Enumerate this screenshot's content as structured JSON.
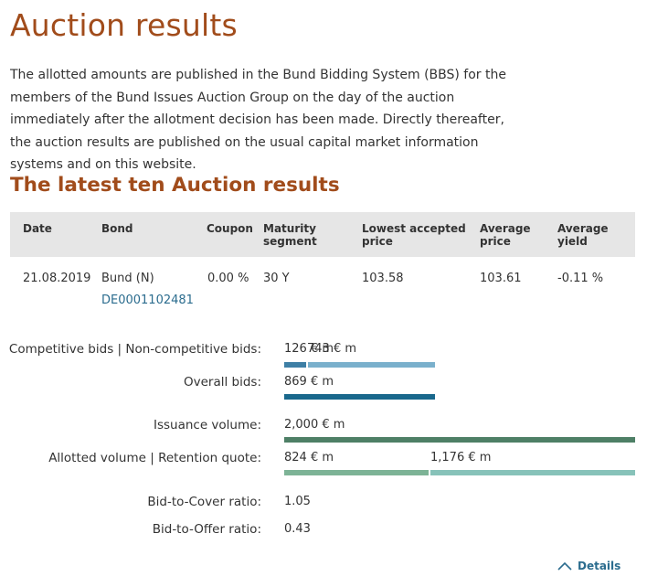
{
  "page": {
    "title": "Auction results",
    "intro": "The allotted amounts are published in the Bund Bidding System (BBS) for the members of the Bund Issues Auction Group on the day of the auction immediately after the allotment decision has been made. Directly thereafter, the auction results are published on the usual capital market information systems and on this website.",
    "section_title": "The latest ten Auction results"
  },
  "table": {
    "headers": {
      "date": "Date",
      "bond": "Bond",
      "coupon": "Coupon",
      "maturity_1": "Maturity",
      "maturity_2": "segment",
      "lowest_1": "Lowest accepted",
      "lowest_2": "price",
      "average_price_1": "Average",
      "average_price_2": "price",
      "average_yield_1": "Average",
      "average_yield_2": "yield"
    },
    "row": {
      "date": "21.08.2019",
      "bond": "Bund (N)",
      "isin": "DE0001102481",
      "coupon": "0.00 %",
      "maturity": "30 Y",
      "lowest_price": "103.58",
      "average_price": "103.61",
      "average_yield": "-0.11 %"
    }
  },
  "details": {
    "competitive_label": "Competitive bids | Non-competitive bids:",
    "competitive_value_a": "126 € m",
    "competitive_value_b": "743 € m",
    "competitive_fraction": 0.145,
    "overall_label": "Overall bids:",
    "overall_value": "869 € m",
    "issuance_label": "Issuance volume:",
    "issuance_value": "2,000 € m",
    "allotted_label": "Allotted volume | Retention quote:",
    "allotted_value": "824 € m",
    "retention_value": "1,176 € m",
    "allotted_fraction": 0.412,
    "btc_label": "Bid-to-Cover ratio:",
    "btc_value": "1.05",
    "bto_label": "Bid-to-Offer ratio:",
    "bto_value": "0.43",
    "toggle_label": "Details"
  },
  "colors": {
    "title": "#a14c1b",
    "link": "#2b6c8e",
    "competitive": "#3e7fa5",
    "non_competitive": "#7ab0cc",
    "overall": "#19688c",
    "issuance": "#4e7f66",
    "allotted": "#7db396",
    "retention": "#87c2b9"
  }
}
